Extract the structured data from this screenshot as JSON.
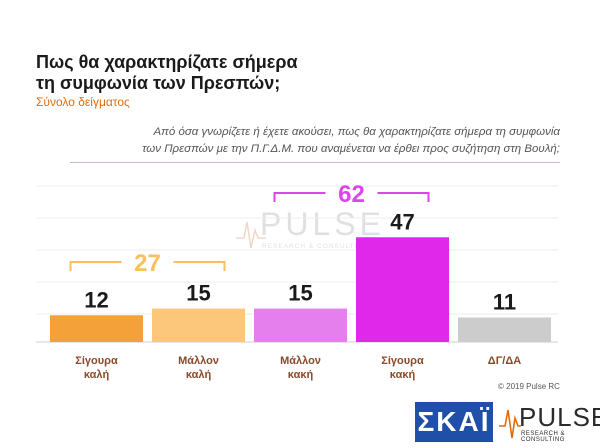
{
  "header": {
    "title_line1": "Πως θα χαρακτηρίζατε σήμερα",
    "title_line2": "τη συμφωνία των Πρεσπών;",
    "subtitle": "Σύνολο δείγματος"
  },
  "question": {
    "line1": "Από όσα γνωρίζετε ή έχετε ακούσει, πως θα χαρακτηρίζατε σήμερα τη συμφωνία",
    "line2": "των Πρεσπών με την Π.Γ.Δ.Μ. που αναμένεται να έρθει προς συζήτηση στη Βουλή;"
  },
  "chart_data": {
    "type": "bar",
    "categories": [
      [
        "Σίγουρα",
        "καλή"
      ],
      [
        "Μάλλον",
        "καλή"
      ],
      [
        "Μάλλον",
        "κακή"
      ],
      [
        "Σίγουρα",
        "κακή"
      ],
      [
        "ΔΓ/ΔΑ"
      ]
    ],
    "values": [
      12,
      15,
      15,
      47,
      11
    ],
    "colors": [
      "#f5a13a",
      "#fcc77a",
      "#e57fee",
      "#e028ea",
      "#cccccc"
    ],
    "groups": [
      {
        "label": "27",
        "from": 0,
        "to": 1,
        "color": "#fbbf5e"
      },
      {
        "label": "62",
        "from": 2,
        "to": 3,
        "color": "#dd44ec"
      }
    ],
    "label_color": "#8a4a2a",
    "ylim": [
      0,
      70
    ],
    "grid": true
  },
  "watermark": {
    "word": "PULSE",
    "sub": "RESEARCH & CONSULTING"
  },
  "footer": {
    "copyright": "© 2019 Pulse RC",
    "skai": "ΣΚΑΪ",
    "pulse_word": "PULSE",
    "pulse_sub": "RESEARCH & CONSULTING"
  }
}
